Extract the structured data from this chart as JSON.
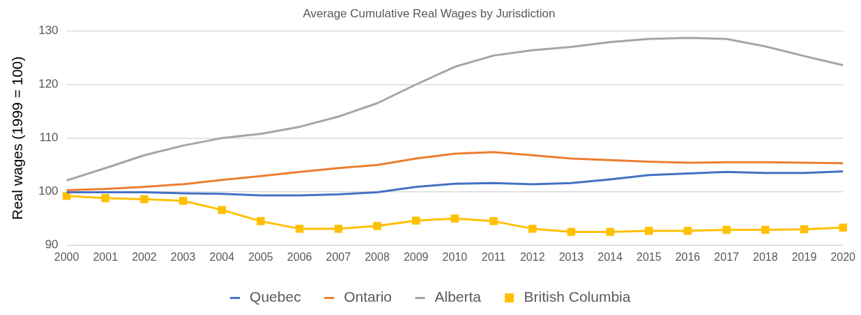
{
  "chart_data": {
    "type": "line",
    "title": "Average Cumulative Real Wages by Jurisdiction",
    "ylabel": "Real wages (1999 = 100)",
    "categories": [
      "2000",
      "2001",
      "2002",
      "2003",
      "2004",
      "2005",
      "2006",
      "2007",
      "2008",
      "2009",
      "2010",
      "2011",
      "2012",
      "2013",
      "2014",
      "2015",
      "2016",
      "2017",
      "2018",
      "2019",
      "2020"
    ],
    "series": [
      {
        "name": "Quebec",
        "color": "#4472c4",
        "marker": "none",
        "values": [
          99.9,
          99.9,
          99.9,
          99.7,
          99.6,
          99.3,
          99.3,
          99.5,
          99.9,
          100.9,
          101.5,
          101.6,
          101.4,
          101.6,
          102.3,
          103.1,
          103.4,
          103.7,
          103.5,
          103.5,
          103.8
        ]
      },
      {
        "name": "Ontario",
        "color": "#ed7d31",
        "marker": "none",
        "values": [
          100.3,
          100.5,
          100.9,
          101.4,
          102.2,
          102.9,
          103.7,
          104.4,
          105.0,
          106.2,
          107.1,
          107.4,
          106.8,
          106.2,
          105.9,
          105.6,
          105.4,
          105.5,
          105.5,
          105.4,
          105.3
        ]
      },
      {
        "name": "Alberta",
        "color": "#a5a5a5",
        "marker": "none",
        "values": [
          102.1,
          104.4,
          106.8,
          108.6,
          110.0,
          110.8,
          112.1,
          114.0,
          116.5,
          120.0,
          123.3,
          125.4,
          126.4,
          127.0,
          127.9,
          128.5,
          128.7,
          128.5,
          127.1,
          125.3,
          123.6
        ]
      },
      {
        "name": "British Columbia",
        "color": "#ffc000",
        "marker": "square",
        "values": [
          99.2,
          98.8,
          98.6,
          98.3,
          96.6,
          94.5,
          93.1,
          93.1,
          93.6,
          94.6,
          95.0,
          94.5,
          93.1,
          92.5,
          92.5,
          92.7,
          92.7,
          92.9,
          92.9,
          93.0,
          93.3
        ]
      }
    ],
    "ylim": [
      90,
      130
    ],
    "yticks": [
      90,
      100,
      110,
      120,
      130
    ],
    "grid": "y",
    "legend": "bottom",
    "line_style": "solid"
  }
}
